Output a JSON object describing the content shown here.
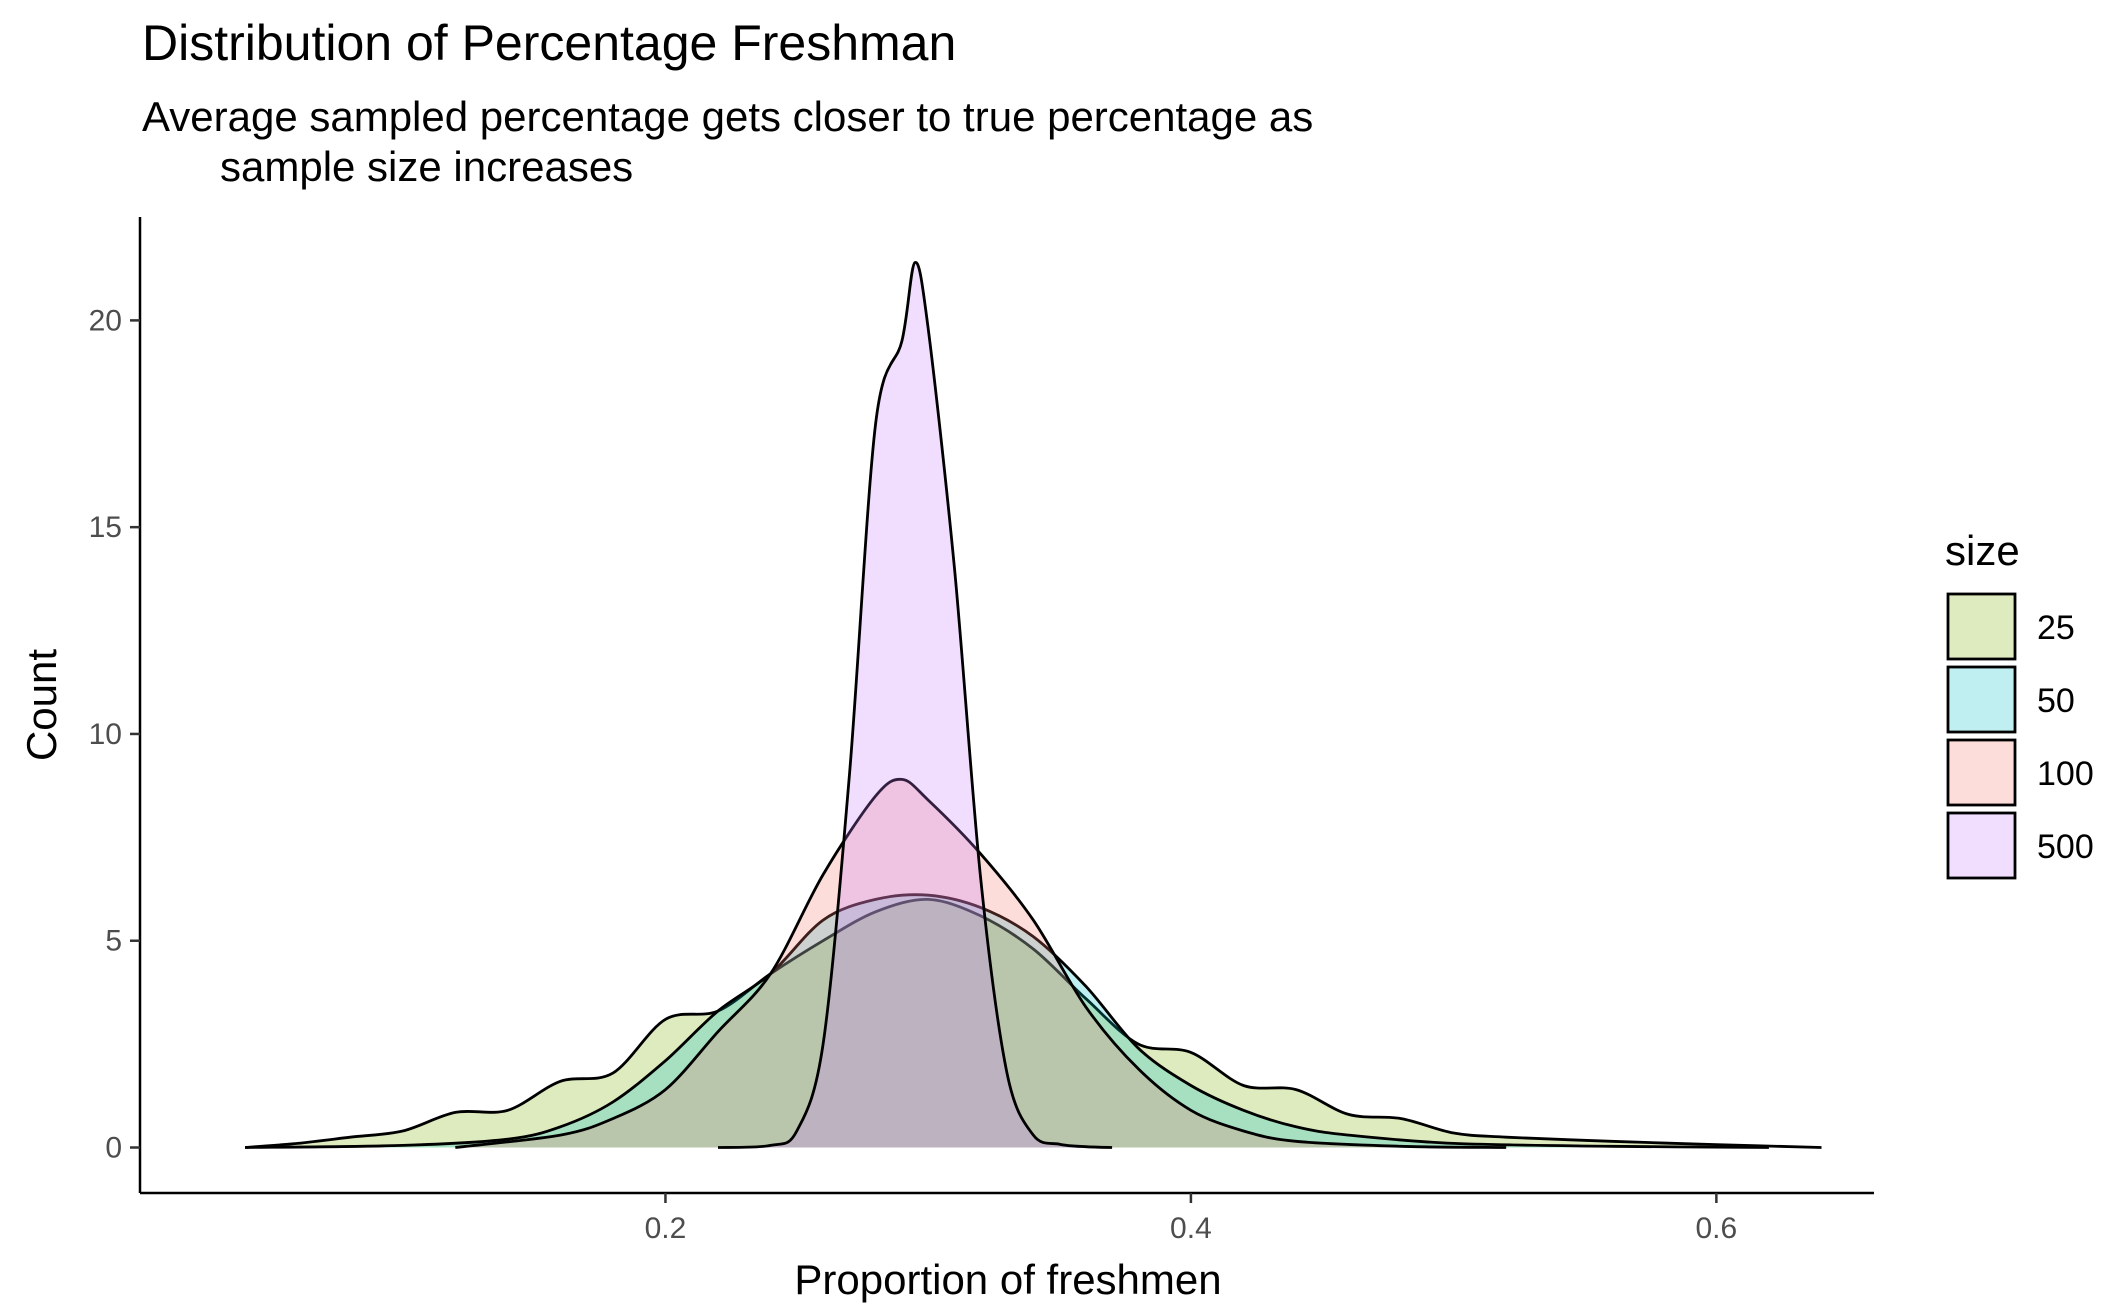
{
  "chart_data": {
    "type": "area",
    "title": "Distribution of Percentage Freshman",
    "subtitle_line1": "Average sampled percentage gets closer to true percentage as",
    "subtitle_line2": "sample size increases",
    "xlabel": "Proportion of freshmen",
    "ylabel": "Count",
    "xlim": [
      0.0,
      0.66
    ],
    "ylim": [
      -1.1,
      22.5
    ],
    "x_ticks": [
      0.2,
      0.4,
      0.6
    ],
    "x_tick_labels": [
      "0.2",
      "0.4",
      "0.6"
    ],
    "y_ticks": [
      0,
      5,
      10,
      15,
      20
    ],
    "y_tick_labels": [
      "0",
      "5",
      "10",
      "15",
      "20"
    ],
    "grid": false,
    "legend_title": "size",
    "legend_position": "right",
    "series": [
      {
        "name": "25",
        "color": "#7CAE00",
        "x": [
          0.04,
          0.06,
          0.08,
          0.1,
          0.12,
          0.14,
          0.16,
          0.18,
          0.2,
          0.22,
          0.24,
          0.26,
          0.28,
          0.3,
          0.32,
          0.34,
          0.36,
          0.38,
          0.4,
          0.42,
          0.44,
          0.46,
          0.48,
          0.5,
          0.52,
          0.56,
          0.6,
          0.64
        ],
        "y": [
          0.0,
          0.1,
          0.25,
          0.4,
          0.85,
          0.9,
          1.6,
          1.8,
          3.1,
          3.3,
          4.2,
          5.0,
          5.7,
          6.0,
          5.6,
          4.8,
          3.6,
          2.5,
          2.3,
          1.5,
          1.4,
          0.8,
          0.7,
          0.35,
          0.25,
          0.15,
          0.07,
          0.0
        ]
      },
      {
        "name": "50",
        "color": "#00BFC4",
        "x": [
          0.04,
          0.1,
          0.14,
          0.16,
          0.18,
          0.2,
          0.22,
          0.24,
          0.26,
          0.28,
          0.3,
          0.32,
          0.34,
          0.36,
          0.38,
          0.4,
          0.42,
          0.44,
          0.46,
          0.5,
          0.56,
          0.62
        ],
        "y": [
          0.0,
          0.05,
          0.2,
          0.5,
          1.1,
          2.1,
          3.3,
          4.2,
          5.5,
          6.0,
          6.1,
          5.8,
          5.1,
          3.9,
          2.4,
          1.5,
          0.9,
          0.5,
          0.3,
          0.1,
          0.03,
          0.0
        ]
      },
      {
        "name": "100",
        "color": "#F8766D",
        "x": [
          0.12,
          0.16,
          0.18,
          0.2,
          0.22,
          0.24,
          0.26,
          0.28,
          0.29,
          0.3,
          0.32,
          0.34,
          0.36,
          0.38,
          0.4,
          0.42,
          0.44,
          0.48,
          0.52
        ],
        "y": [
          0.0,
          0.3,
          0.7,
          1.4,
          2.8,
          4.2,
          6.6,
          8.5,
          8.9,
          8.4,
          7.1,
          5.5,
          3.4,
          1.9,
          0.9,
          0.4,
          0.15,
          0.03,
          0.0
        ]
      },
      {
        "name": "500",
        "color": "#C77CFF",
        "x": [
          0.22,
          0.24,
          0.25,
          0.26,
          0.27,
          0.28,
          0.29,
          0.295,
          0.3,
          0.31,
          0.32,
          0.33,
          0.34,
          0.35,
          0.36,
          0.37
        ],
        "y": [
          0.0,
          0.05,
          0.4,
          2.5,
          9.0,
          17.5,
          19.5,
          21.4,
          19.8,
          14.0,
          6.5,
          1.8,
          0.3,
          0.08,
          0.02,
          0.0
        ]
      }
    ]
  }
}
